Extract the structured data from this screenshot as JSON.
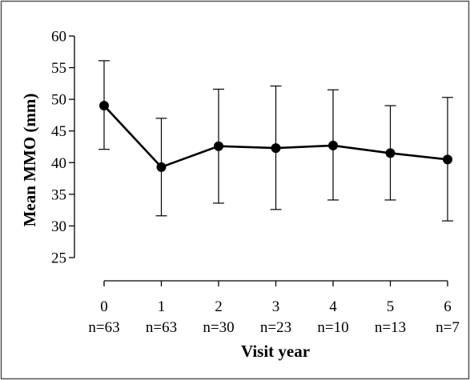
{
  "chart_data": {
    "type": "line",
    "title": "",
    "xlabel": "Visit year",
    "ylabel": "Mean MMO (mm)",
    "ylim": [
      25,
      60
    ],
    "yticks": [
      25,
      30,
      35,
      40,
      45,
      50,
      55,
      60
    ],
    "categories": [
      "0",
      "1",
      "2",
      "3",
      "4",
      "5",
      "6"
    ],
    "n_labels": [
      "n=63",
      "n=63",
      "n=30",
      "n=23",
      "n=10",
      "n=13",
      "n=7"
    ],
    "series": [
      {
        "values": [
          49.0,
          39.3,
          42.6,
          42.3,
          42.7,
          41.5,
          40.5
        ],
        "error_low": [
          42.1,
          31.6,
          33.6,
          32.6,
          34.1,
          34.1,
          30.8
        ],
        "error_high": [
          56.1,
          47.0,
          51.6,
          52.1,
          51.5,
          49.0,
          50.3
        ]
      }
    ],
    "legend": "none",
    "grid": false,
    "colors": {
      "line": "#000000",
      "marker": "#000000",
      "frame": "#555555"
    }
  }
}
